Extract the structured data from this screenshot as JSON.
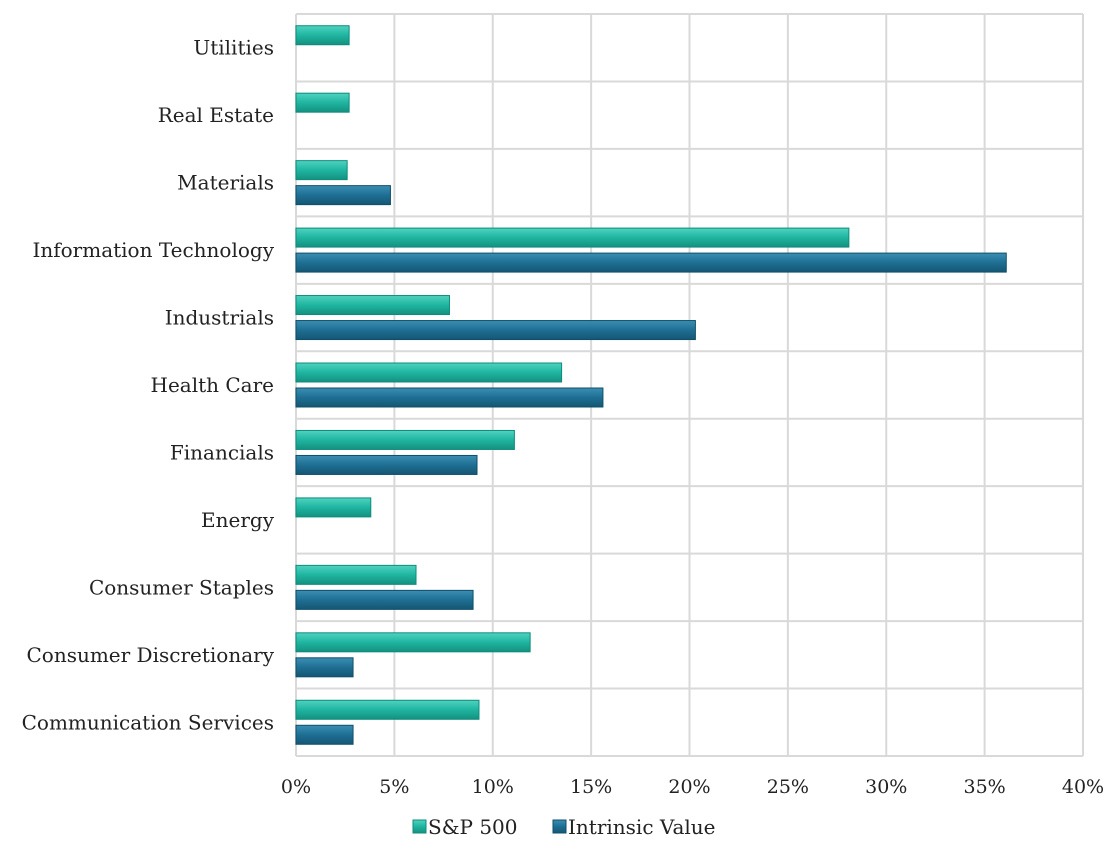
{
  "chart_data": {
    "type": "bar",
    "orientation": "horizontal",
    "categories": [
      "Communication Services",
      "Consumer Discretionary",
      "Consumer Staples",
      "Energy",
      "Financials",
      "Health Care",
      "Industrials",
      "Information Technology",
      "Materials",
      "Real Estate",
      "Utilities"
    ],
    "series": [
      {
        "name": "S&P 500",
        "color": "#1fb5a0",
        "values": [
          9.3,
          11.9,
          6.1,
          3.8,
          11.1,
          13.5,
          7.8,
          28.1,
          2.6,
          2.7,
          2.7
        ]
      },
      {
        "name": "Intrinsic Value",
        "color": "#1e6f93",
        "values": [
          2.9,
          2.9,
          9.0,
          null,
          9.2,
          15.6,
          20.3,
          36.1,
          4.8,
          null,
          null
        ]
      }
    ],
    "xlim": [
      0,
      40
    ],
    "x_ticks": [
      "0%",
      "5%",
      "10%",
      "15%",
      "20%",
      "25%",
      "30%",
      "35%",
      "40%"
    ],
    "x_tick_values": [
      0,
      5,
      10,
      15,
      20,
      25,
      30,
      35,
      40
    ],
    "grid": true,
    "legend_position": "bottom-center",
    "title": "",
    "xlabel": "",
    "ylabel": ""
  }
}
